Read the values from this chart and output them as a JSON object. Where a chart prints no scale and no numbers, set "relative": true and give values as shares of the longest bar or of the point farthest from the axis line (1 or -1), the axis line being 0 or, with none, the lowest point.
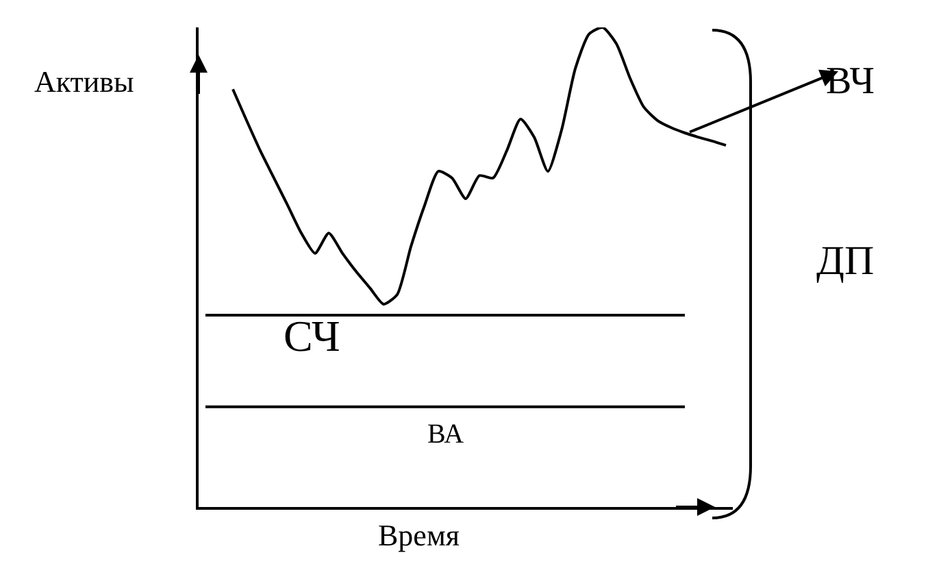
{
  "chart_data": {
    "type": "line",
    "relative": true,
    "xlabel": "Время",
    "ylabel": "Активы",
    "categories": [
      null,
      null,
      null,
      null,
      null,
      null,
      null,
      null,
      null,
      null,
      null,
      null,
      null,
      null,
      null,
      null,
      null,
      null,
      null,
      null,
      null,
      null,
      null,
      null,
      null,
      null,
      null,
      null,
      null,
      null,
      null,
      null,
      null,
      null,
      null,
      null,
      null,
      null,
      null
    ],
    "series": [
      {
        "color": "#000000",
        "values": [
          null,
          null,
          0.871,
          0.806,
          0.743,
          0.686,
          0.629,
          0.571,
          0.529,
          0.571,
          0.529,
          0.491,
          0.457,
          0.423,
          0.443,
          0.543,
          0.629,
          0.7,
          0.686,
          0.643,
          0.691,
          0.686,
          0.743,
          0.809,
          0.771,
          0.7,
          0.786,
          0.914,
          0.986,
          1,
          0.966,
          0.894,
          0.834,
          0.806,
          0.791,
          0.78,
          0.771,
          0.763,
          0.754
        ]
      },
      {
        "color": "#000000",
        "values": [
          0.4,
          0.4,
          0.4,
          0.4,
          0.4,
          0.4,
          0.4,
          0.4,
          0.4,
          0.4,
          0.4,
          0.4,
          0.4,
          0.4,
          0.4,
          0.4,
          0.4,
          0.4,
          0.4,
          0.4,
          0.4,
          0.4,
          0.4,
          0.4,
          0.4,
          0.4,
          0.4,
          0.4,
          0.4,
          0.4,
          0.4,
          0.4,
          0.4,
          0.4,
          0.4,
          0.4,
          null,
          null,
          null
        ]
      },
      {
        "color": "#000000",
        "values": [
          0.209,
          0.209,
          0.209,
          0.209,
          0.209,
          0.209,
          0.209,
          0.209,
          0.209,
          0.209,
          0.209,
          0.209,
          0.209,
          0.209,
          0.209,
          0.209,
          0.209,
          0.209,
          0.209,
          0.209,
          0.209,
          0.209,
          0.209,
          0.209,
          0.209,
          0.209,
          0.209,
          0.209,
          0.209,
          0.209,
          0.209,
          0.209,
          0.209,
          0.209,
          0.209,
          0.209,
          null,
          null,
          null
        ]
      }
    ],
    "annotations": [
      "СЧ",
      "ВА",
      "ВЧ",
      "ДП"
    ]
  }
}
